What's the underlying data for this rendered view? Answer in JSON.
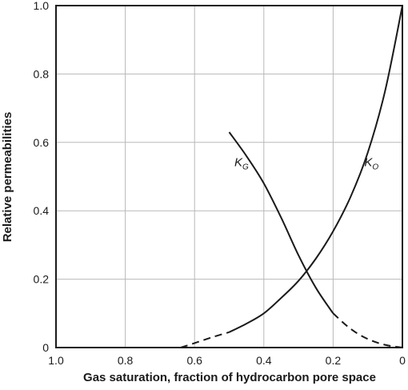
{
  "chart_data": {
    "type": "line",
    "title": "",
    "xlabel": "Gas saturation, fraction of hydrocarbon pore space",
    "ylabel": "Relative permeabilities",
    "xlim": [
      1.0,
      0.0
    ],
    "ylim": [
      0.0,
      1.0
    ],
    "x_reversed": true,
    "grid": true,
    "x_ticks": [
      1.0,
      0.8,
      0.6,
      0.4,
      0.2,
      0.0
    ],
    "x_tick_labels": [
      "1.0",
      "0.8",
      "0.6",
      "0.4",
      "0.2",
      "0"
    ],
    "y_ticks": [
      0.0,
      0.2,
      0.4,
      0.6,
      0.8,
      1.0
    ],
    "y_tick_labels": [
      "0",
      "0.2",
      "0.4",
      "0.6",
      "0.8",
      "1.0"
    ],
    "series": [
      {
        "name": "K_O",
        "label_main": "K",
        "label_sub": "O",
        "label_at": [
          0.11,
          0.53
        ],
        "color": "#1a1a1a",
        "solid": [
          {
            "x": 0.5,
            "y": 0.045
          },
          {
            "x": 0.45,
            "y": 0.07
          },
          {
            "x": 0.4,
            "y": 0.1
          },
          {
            "x": 0.35,
            "y": 0.145
          },
          {
            "x": 0.3,
            "y": 0.195
          },
          {
            "x": 0.25,
            "y": 0.26
          },
          {
            "x": 0.2,
            "y": 0.34
          },
          {
            "x": 0.15,
            "y": 0.44
          },
          {
            "x": 0.1,
            "y": 0.57
          },
          {
            "x": 0.05,
            "y": 0.75
          },
          {
            "x": 0.0,
            "y": 1.0
          }
        ],
        "dashed": [
          {
            "x": 0.64,
            "y": 0.0
          },
          {
            "x": 0.6,
            "y": 0.013
          },
          {
            "x": 0.55,
            "y": 0.03
          },
          {
            "x": 0.5,
            "y": 0.045
          }
        ]
      },
      {
        "name": "K_G",
        "label_main": "K",
        "label_sub": "G",
        "label_at": [
          0.485,
          0.53
        ],
        "color": "#1a1a1a",
        "solid": [
          {
            "x": 0.5,
            "y": 0.63
          },
          {
            "x": 0.45,
            "y": 0.56
          },
          {
            "x": 0.4,
            "y": 0.48
          },
          {
            "x": 0.35,
            "y": 0.38
          },
          {
            "x": 0.3,
            "y": 0.27
          },
          {
            "x": 0.25,
            "y": 0.175
          },
          {
            "x": 0.2,
            "y": 0.1
          }
        ],
        "dashed": [
          {
            "x": 0.2,
            "y": 0.1
          },
          {
            "x": 0.15,
            "y": 0.055
          },
          {
            "x": 0.1,
            "y": 0.025
          },
          {
            "x": 0.05,
            "y": 0.008
          },
          {
            "x": 0.0,
            "y": 0.0
          }
        ]
      }
    ]
  }
}
